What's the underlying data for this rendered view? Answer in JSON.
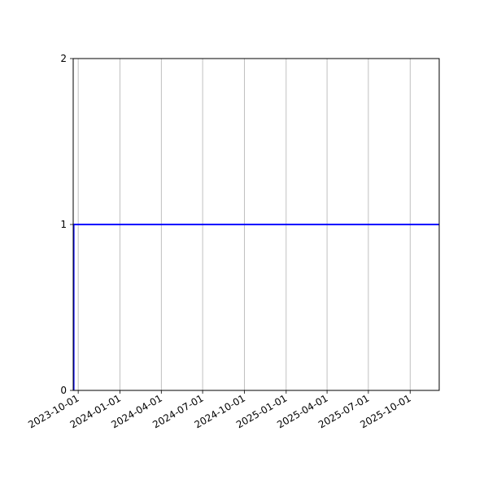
{
  "chart_data": {
    "type": "line",
    "title": "",
    "xlabel": "",
    "ylabel": "",
    "xlim": [
      "2023-09-20",
      "2025-12-04"
    ],
    "ylim": [
      0,
      2
    ],
    "grid": {
      "x": true,
      "y": false
    },
    "x_ticks": [
      "2023-10-01",
      "2024-01-01",
      "2024-04-01",
      "2024-07-01",
      "2024-10-01",
      "2025-01-01",
      "2025-04-01",
      "2025-07-01",
      "2025-10-01"
    ],
    "y_ticks": [
      "0",
      "1",
      "2"
    ],
    "series": [
      {
        "color": "#0000ff",
        "step": true,
        "points": [
          [
            "2023-09-21",
            0
          ],
          [
            "2023-09-21",
            1
          ],
          [
            "2025-12-04",
            1
          ]
        ]
      }
    ]
  }
}
